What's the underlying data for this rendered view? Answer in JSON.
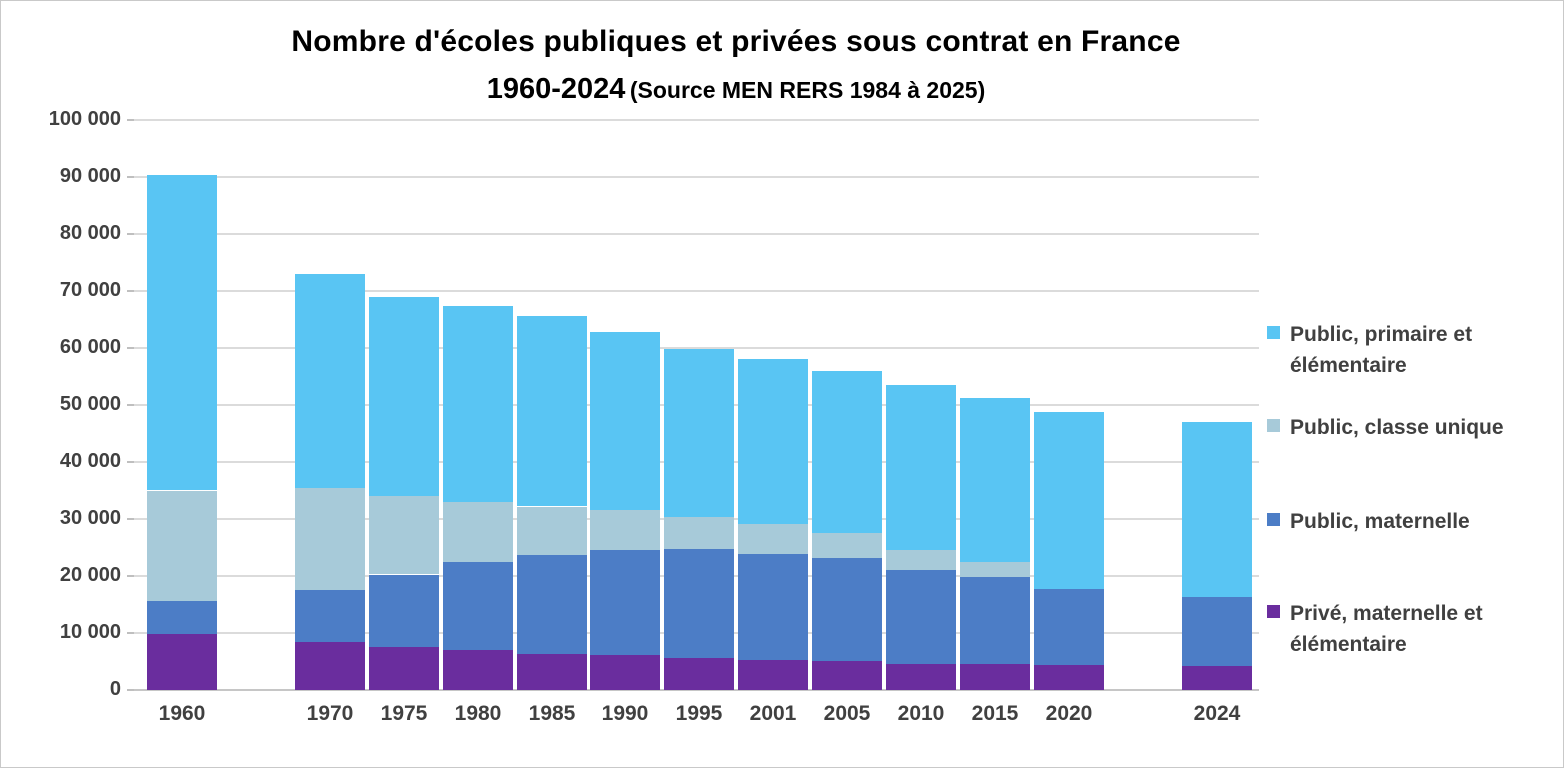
{
  "title": {
    "line1": "Nombre d'écoles publiques et privées sous contrat en France",
    "line2_range": "1960-2024",
    "line2_source": "(Source MEN RERS 1984 à 2025)"
  },
  "colors": {
    "background": "#ffffff",
    "gridline": "#dbdbdb",
    "axis_text": "#404040",
    "title_text": "#000000"
  },
  "chart_data": {
    "type": "bar",
    "stacked": true,
    "title": "Nombre d'écoles publiques et privées sous contrat en France 1960-2024 (Source MEN RERS 1984 à 2025)",
    "xlabel": "",
    "ylabel": "",
    "ylim": [
      0,
      100000
    ],
    "ytick_step": 10000,
    "grid": true,
    "legend_position": "right",
    "categories": [
      "1960",
      "1970",
      "1975",
      "1980",
      "1985",
      "1990",
      "1995",
      "2001",
      "2005",
      "2010",
      "2015",
      "2020",
      "2024"
    ],
    "series": [
      {
        "name": "Privé, maternelle et élémentaire",
        "color": "#6A2D9E",
        "values": [
          9900,
          8400,
          7600,
          7000,
          6400,
          6100,
          5600,
          5200,
          5100,
          4600,
          4500,
          4300,
          4200
        ]
      },
      {
        "name": "Public, maternelle",
        "color": "#4C7DC6",
        "values": [
          5800,
          9200,
          12700,
          15500,
          17300,
          18500,
          19100,
          18700,
          18000,
          16500,
          15300,
          13400,
          12200
        ]
      },
      {
        "name": "Public, classe unique",
        "color": "#A7CAD9",
        "values": [
          19300,
          17900,
          13700,
          10500,
          8500,
          7000,
          5600,
          5300,
          4500,
          3500,
          2700,
          0,
          0
        ]
      },
      {
        "name": "Public, primaire et élémentaire",
        "color": "#59C5F3",
        "values": [
          55200,
          37500,
          34900,
          34400,
          33300,
          31200,
          29500,
          28900,
          28400,
          28900,
          28700,
          31100,
          30700
        ]
      }
    ],
    "totals": [
      90200,
      73000,
      68900,
      67400,
      65500,
      62800,
      59800,
      58100,
      56000,
      53500,
      51200,
      48800,
      47100
    ],
    "y_tick_labels": [
      "100 000",
      "90 000",
      "80 000",
      "70 000",
      "60 000",
      "50 000",
      "40 000",
      "30 000",
      "20 000",
      "10 000",
      "0"
    ],
    "legend_order_top_to_bottom": [
      "Public, primaire et élémentaire",
      "Public, classe unique",
      "Public, maternelle",
      "Privé, maternelle et élémentaire"
    ],
    "layout": {
      "category_slots": [
        0,
        2,
        3,
        4,
        5,
        6,
        7,
        8,
        9,
        10,
        11,
        12,
        14
      ],
      "total_slots": 15
    }
  }
}
